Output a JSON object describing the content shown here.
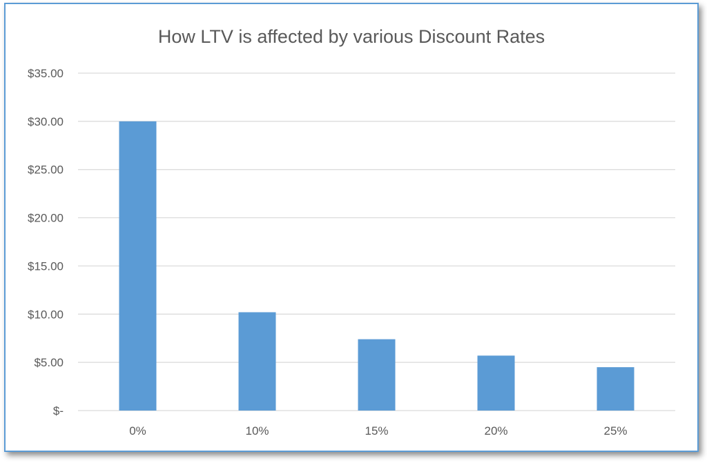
{
  "chart_data": {
    "type": "bar",
    "title": "How LTV is affected by various Discount Rates",
    "categories": [
      "0%",
      "10%",
      "15%",
      "20%",
      "25%"
    ],
    "values": [
      30.0,
      10.2,
      7.4,
      5.7,
      4.5
    ],
    "ylim": [
      0,
      35
    ],
    "ytick_values": [
      0,
      5,
      10,
      15,
      20,
      25,
      30,
      35
    ],
    "ytick_labels": [
      "$-",
      "$5.00",
      "$10.00",
      "$15.00",
      "$20.00",
      "$25.00",
      "$30.00",
      "$35.00"
    ],
    "xlabel": "",
    "ylabel": "",
    "grid": true,
    "legend": "none",
    "bar_color": "#5b9bd5",
    "grid_color": "#d9d9d9",
    "text_color": "#595959",
    "frame_color": "#5b9bd5"
  }
}
